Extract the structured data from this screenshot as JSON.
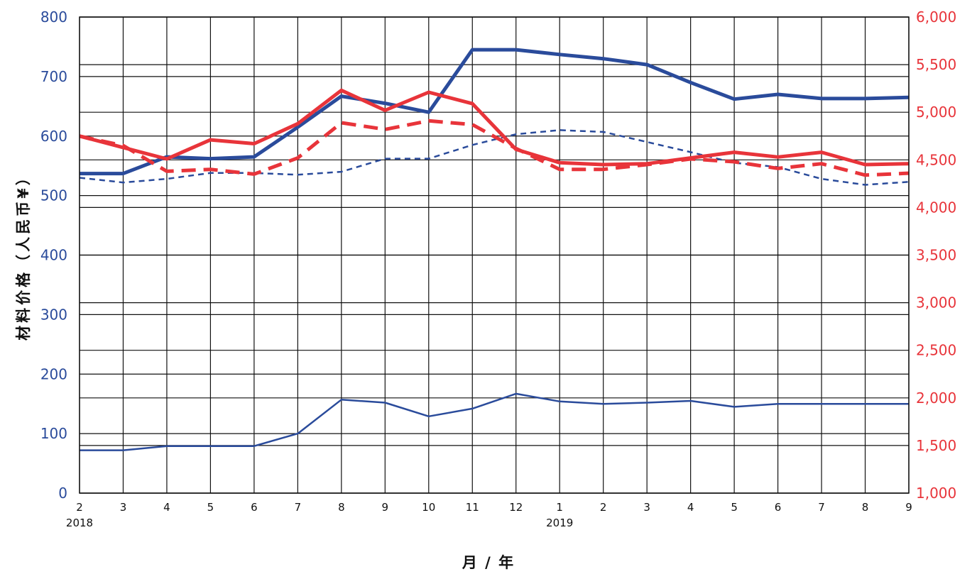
{
  "chart_data": {
    "type": "line",
    "xlabel": "月 / 年",
    "ylabel_left": "材料价格（人民币¥）",
    "ylabel_right": "",
    "x_tick_labels": [
      "2",
      "3",
      "4",
      "5",
      "6",
      "7",
      "8",
      "9",
      "10",
      "11",
      "12",
      "1",
      "2",
      "3",
      "4",
      "5",
      "6",
      "7",
      "8",
      "9"
    ],
    "x_year_labels": [
      {
        "index": 0,
        "label": "2018"
      },
      {
        "index": 11,
        "label": "2019"
      }
    ],
    "y_left": {
      "min": 0,
      "max": 800,
      "step": 100,
      "ticks": [
        "0",
        "100",
        "200",
        "300",
        "400",
        "500",
        "600",
        "700",
        "800"
      ]
    },
    "y_right": {
      "min": 1000,
      "max": 6000,
      "step": 500,
      "ticks": [
        "1,000",
        "1,500",
        "2,000",
        "2,500",
        "3,000",
        "3,500",
        "4,000",
        "4,500",
        "5,000",
        "5,500",
        "6,000"
      ]
    },
    "grid": true,
    "colors": {
      "blue": "#2a4b9b",
      "red": "#e8343a"
    },
    "series": [
      {
        "axis": "left",
        "color": "#2a4b9b",
        "style": "thick-solid",
        "values": [
          537,
          537,
          565,
          562,
          565,
          615,
          667,
          655,
          640,
          745,
          745,
          737,
          730,
          720,
          690,
          662,
          670,
          663,
          663,
          665
        ]
      },
      {
        "axis": "left",
        "color": "#2a4b9b",
        "style": "thin-dashed",
        "values": [
          530,
          522,
          528,
          538,
          538,
          535,
          540,
          562,
          562,
          585,
          603,
          610,
          607,
          590,
          573,
          555,
          548,
          528,
          518,
          523
        ]
      },
      {
        "axis": "left",
        "color": "#2a4b9b",
        "style": "thin-solid",
        "values": [
          72,
          72,
          79,
          79,
          79,
          100,
          157,
          152,
          129,
          142,
          167,
          154,
          150,
          152,
          155,
          145,
          150,
          150,
          150,
          150
        ]
      },
      {
        "axis": "right",
        "color": "#e8343a",
        "style": "thick-solid",
        "values": [
          4750,
          4630,
          4510,
          4710,
          4670,
          4880,
          5230,
          5020,
          5210,
          5090,
          4610,
          4470,
          4450,
          4460,
          4520,
          4580,
          4530,
          4580,
          4450,
          4460
        ]
      },
      {
        "axis": "right",
        "color": "#e8343a",
        "style": "thick-dashed",
        "values": [
          4750,
          4650,
          4380,
          4400,
          4350,
          4520,
          4890,
          4820,
          4910,
          4870,
          4620,
          4400,
          4400,
          4450,
          4510,
          4480,
          4410,
          4460,
          4340,
          4360
        ]
      }
    ]
  }
}
